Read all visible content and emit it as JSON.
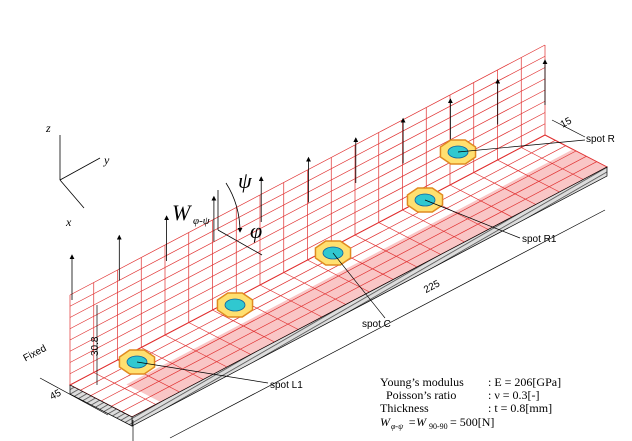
{
  "axes": {
    "z": "z",
    "y": "y",
    "x": "x"
  },
  "load": {
    "symbol": "W",
    "subscript": "φ-ψ",
    "psi": "ψ",
    "phi": "φ"
  },
  "dimensions": {
    "top_width": "15",
    "length": "225",
    "height": "30.8",
    "width": "45"
  },
  "boundary": "Fixed",
  "spots": [
    {
      "label": "spot L1"
    },
    {
      "label": "spot C"
    },
    {
      "label": "spot R1"
    },
    {
      "label": "spot R"
    }
  ],
  "properties": [
    {
      "name": "Young’s modulus",
      "value": ": E = 206[GPa]"
    },
    {
      "name": "Poisson’s ratio",
      "value": ": ν = 0.3[-]"
    },
    {
      "name": "Thickness",
      "value": ": t = 0.8[mm]"
    }
  ],
  "load_equation": {
    "w": "W",
    "w_sub": "φ-ψ",
    "eq": "=W",
    "eq_sub": "90-90",
    "result": "= 500[N]"
  }
}
